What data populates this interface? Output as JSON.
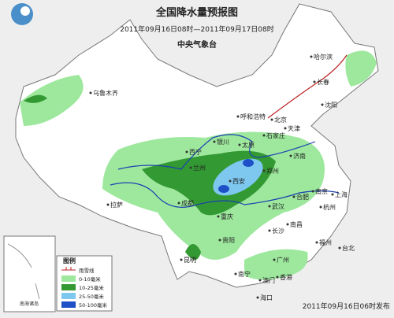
{
  "header": {
    "title": "全国降水量预报图",
    "subtitle": "2011年09月16日08时—2011年09月17日08时",
    "agency": "中央气象台"
  },
  "cities": [
    "乌鲁木齐",
    "哈尔滨",
    "长春",
    "沈阳",
    "呼和浩特",
    "北京",
    "天津",
    "石家庄",
    "银川",
    "太原",
    "西宁",
    "兰州",
    "济南",
    "郑州",
    "西安",
    "拉萨",
    "成都",
    "合肥",
    "南京",
    "上海",
    "武汉",
    "杭州",
    "重庆",
    "长沙",
    "南昌",
    "贵阳",
    "福州",
    "台北",
    "昆明",
    "广州",
    "南宁",
    "香港",
    "澳门",
    "海口"
  ],
  "inset": {
    "label": "南海诸岛"
  },
  "legend": {
    "title": "图例",
    "items": [
      "雨雪线",
      "0-10毫米",
      "10-25毫米",
      "25-50毫米",
      "50-100毫米"
    ]
  },
  "footer": "2011年09月16日06时发布"
}
